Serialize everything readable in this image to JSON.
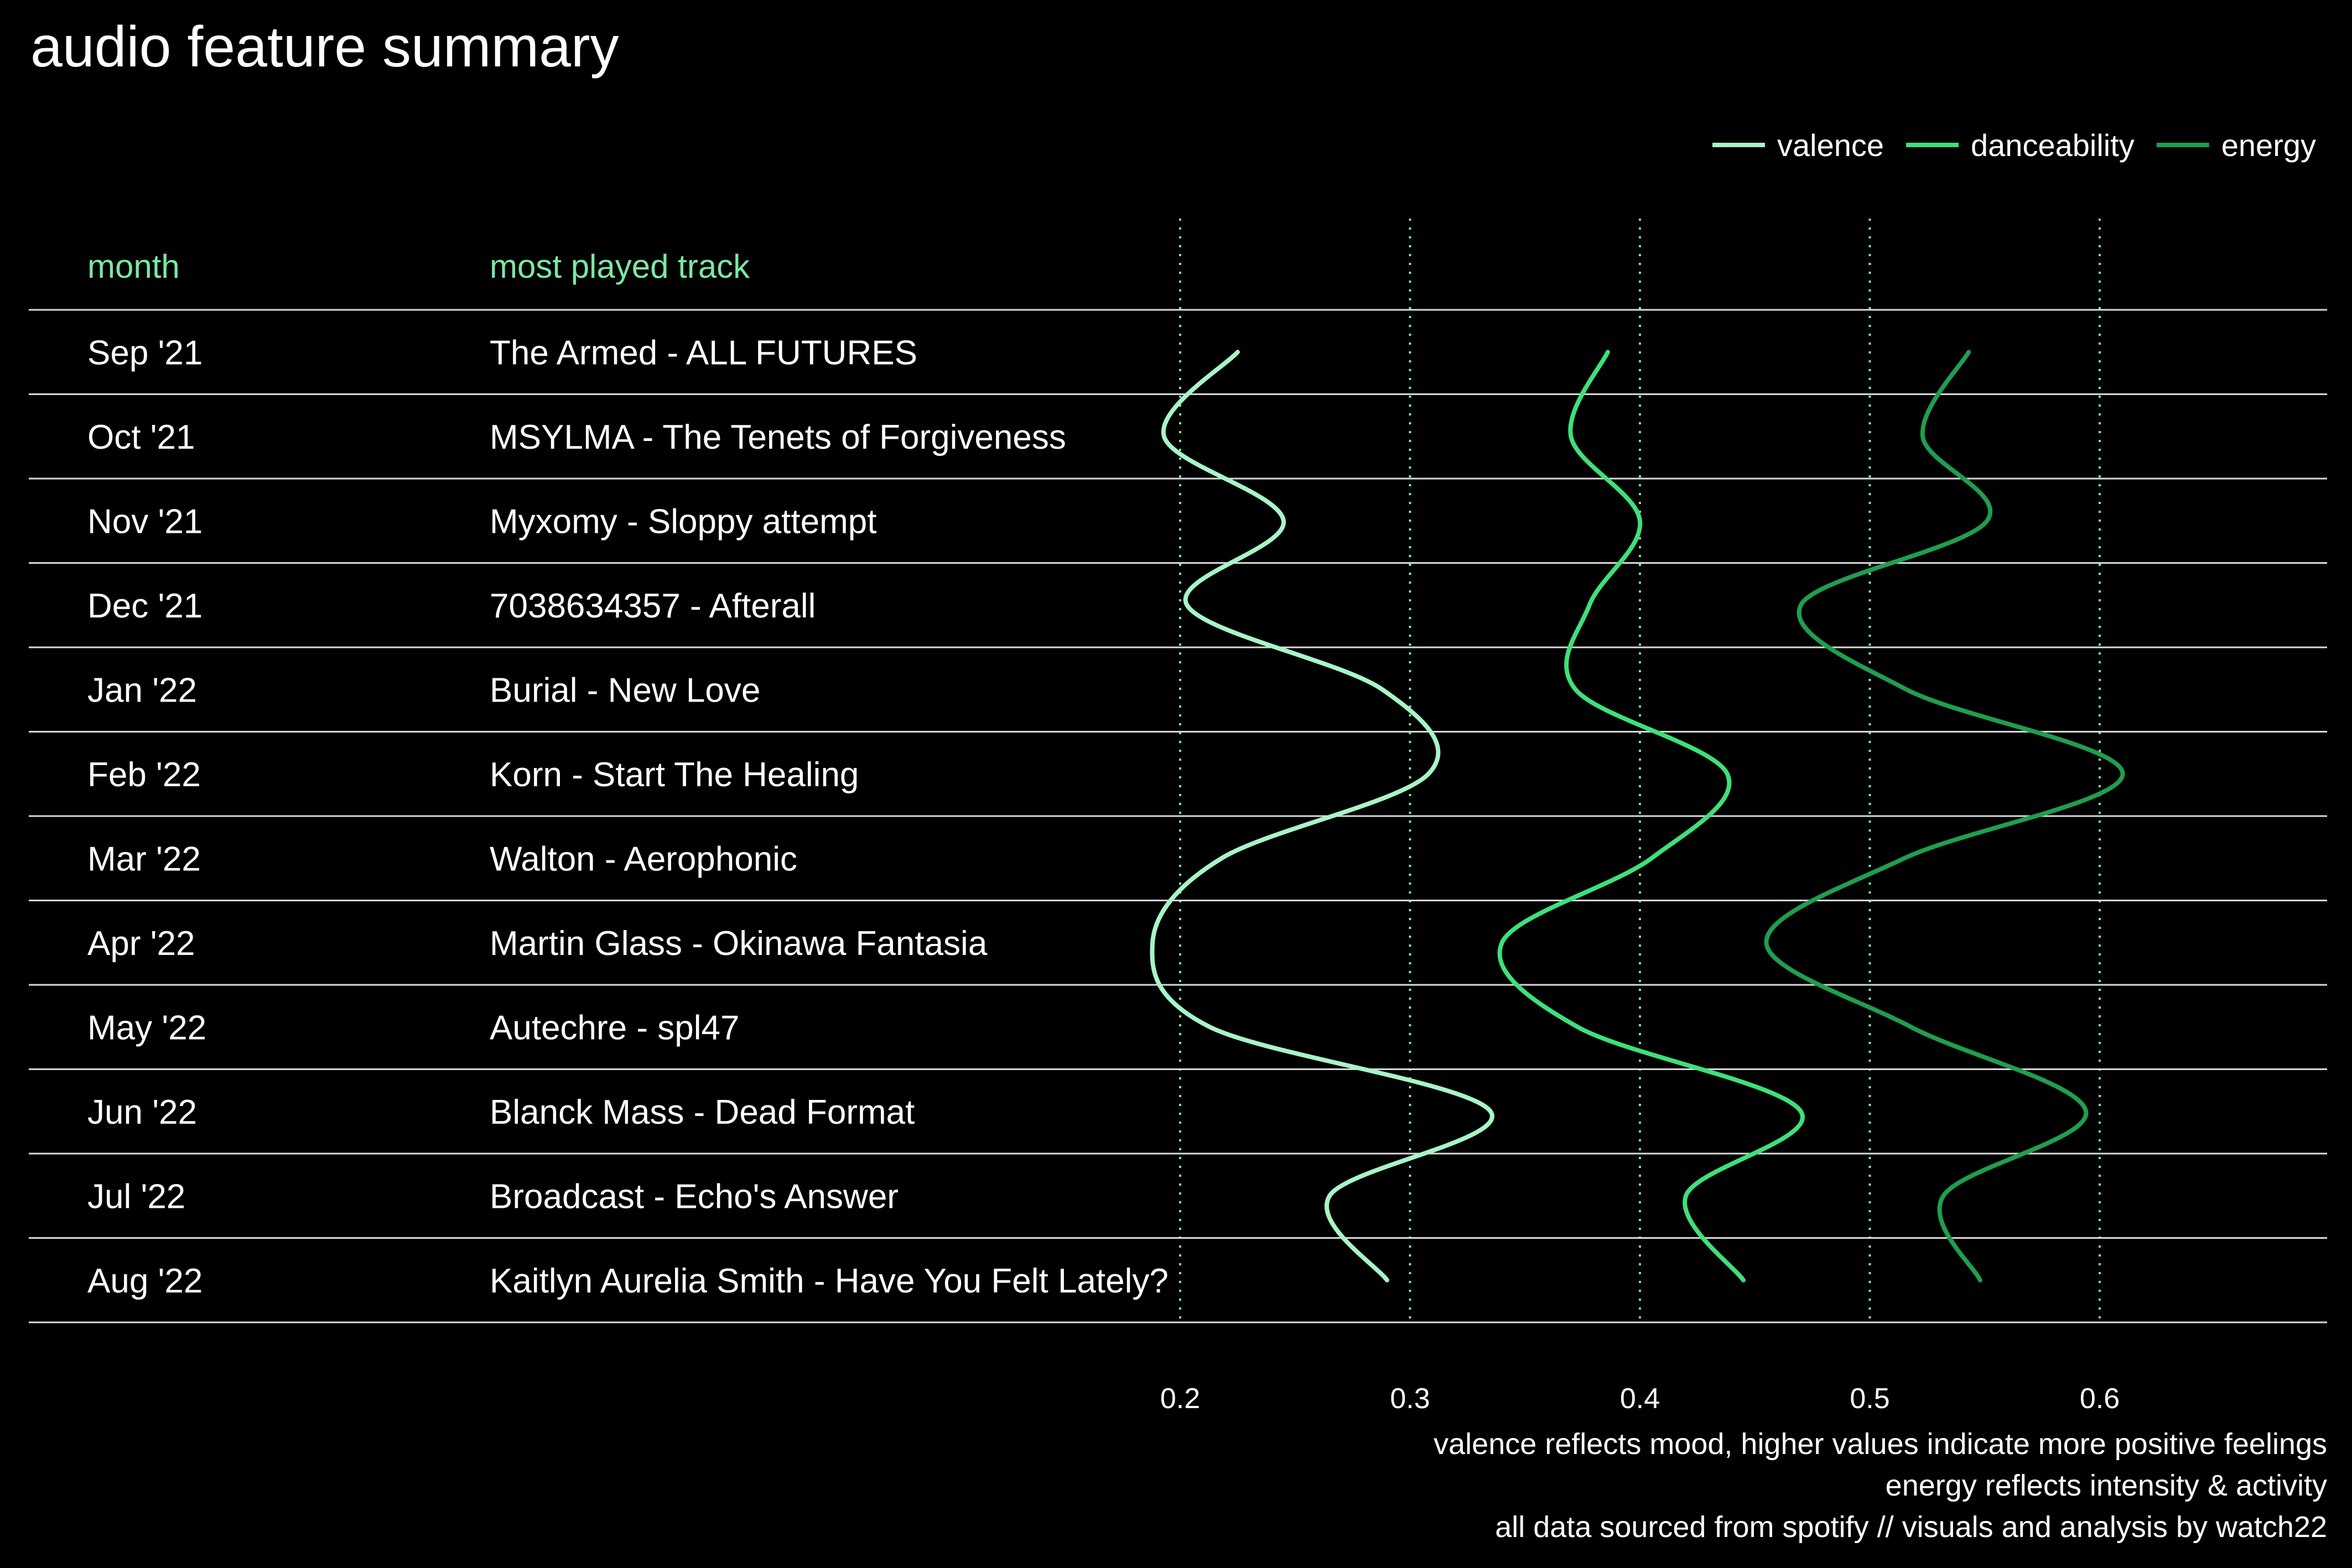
{
  "title": "audio feature summary",
  "columns": {
    "month": "month",
    "track": "most played track"
  },
  "rows": [
    {
      "month": "Sep '21",
      "track": "The Armed - ALL FUTURES"
    },
    {
      "month": "Oct '21",
      "track": "MSYLMA - The Tenets of Forgiveness"
    },
    {
      "month": "Nov '21",
      "track": "Myxomy - Sloppy attempt"
    },
    {
      "month": "Dec '21",
      "track": "7038634357 - Afterall"
    },
    {
      "month": "Jan '22",
      "track": "Burial - New Love"
    },
    {
      "month": "Feb '22",
      "track": "Korn - Start The Healing"
    },
    {
      "month": "Mar '22",
      "track": "Walton - Aerophonic"
    },
    {
      "month": "Apr '22",
      "track": "Martin Glass - Okinawa Fantasia"
    },
    {
      "month": "May '22",
      "track": "Autechre - spl47"
    },
    {
      "month": "Jun '22",
      "track": "Blanck Mass - Dead Format"
    },
    {
      "month": "Jul '22",
      "track": "Broadcast - Echo's Answer"
    },
    {
      "month": "Aug '22",
      "track": "Kaitlyn Aurelia Smith - Have You Felt Lately?"
    }
  ],
  "captions": [
    "valence reflects mood, higher values indicate more positive feelings",
    "energy reflects intensity & activity",
    "all data sourced from spotify // visuals and analysis by watch22"
  ],
  "colors": {
    "background": "#000000",
    "header": "#7be8a2",
    "valence": "#a8f5c6",
    "danceability": "#3ee07a",
    "energy": "#1f9e4f"
  },
  "chart_data": {
    "type": "line",
    "orientation": "horizontal",
    "categories": [
      "Sep '21",
      "Oct '21",
      "Nov '21",
      "Dec '21",
      "Jan '22",
      "Feb '22",
      "Mar '22",
      "Apr '22",
      "May '22",
      "Jun '22",
      "Jul '22",
      "Aug '22"
    ],
    "x_ticks": [
      "0.2",
      "0.3",
      "0.4",
      "0.5",
      "0.6"
    ],
    "xlim": [
      0.2,
      0.6
    ],
    "grid": "vertical dotted",
    "legend_position": "top-right",
    "series": [
      {
        "name": "valence",
        "color": "#a8f5c6",
        "values": [
          0.225,
          0.193,
          0.245,
          0.203,
          0.288,
          0.308,
          0.218,
          0.188,
          0.213,
          0.335,
          0.265,
          0.29
        ]
      },
      {
        "name": "danceability",
        "color": "#3ee07a",
        "values": [
          0.386,
          0.37,
          0.4,
          0.378,
          0.372,
          0.438,
          0.405,
          0.34,
          0.373,
          0.47,
          0.42,
          0.445
        ]
      },
      {
        "name": "energy",
        "color": "#1f9e4f",
        "values": [
          0.543,
          0.523,
          0.551,
          0.47,
          0.516,
          0.61,
          0.515,
          0.455,
          0.518,
          0.594,
          0.532,
          0.548
        ]
      }
    ]
  }
}
